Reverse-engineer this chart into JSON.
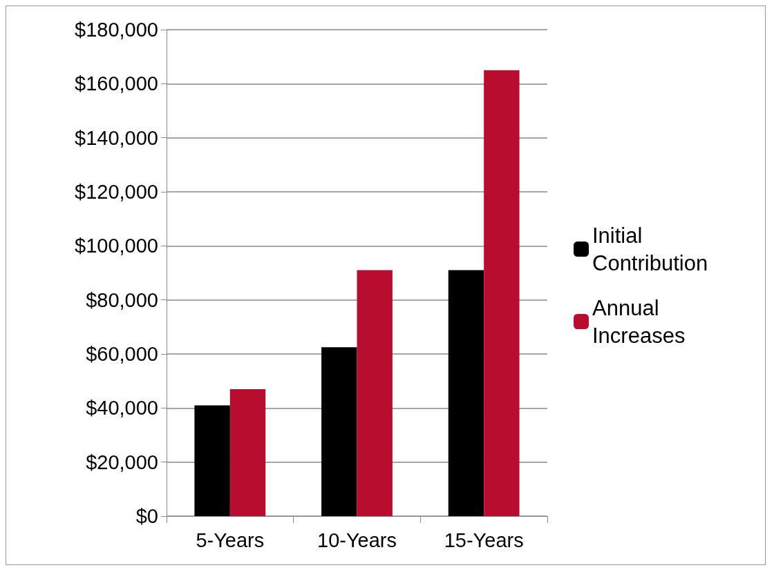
{
  "chart_data": {
    "type": "bar",
    "categories": [
      "5-Years",
      "10-Years",
      "15-Years"
    ],
    "series": [
      {
        "name": "Initial Contribution",
        "color": "#000000",
        "values": [
          41000,
          62500,
          91000
        ]
      },
      {
        "name": "Annual Increases",
        "color": "#b80d2f",
        "values": [
          47000,
          91000,
          165000
        ]
      }
    ],
    "ylim": [
      0,
      180000
    ],
    "yticks": [
      {
        "value": 0,
        "label": "$0"
      },
      {
        "value": 20000,
        "label": "$20,000"
      },
      {
        "value": 40000,
        "label": "$40,000"
      },
      {
        "value": 60000,
        "label": "$60,000"
      },
      {
        "value": 80000,
        "label": "$80,000"
      },
      {
        "value": 100000,
        "label": "$100,000"
      },
      {
        "value": 120000,
        "label": "$120,000"
      },
      {
        "value": 140000,
        "label": "$140,000"
      },
      {
        "value": 160000,
        "label": "$160,000"
      },
      {
        "value": 180000,
        "label": "$180,000"
      }
    ],
    "grid": true,
    "legend": "right"
  }
}
